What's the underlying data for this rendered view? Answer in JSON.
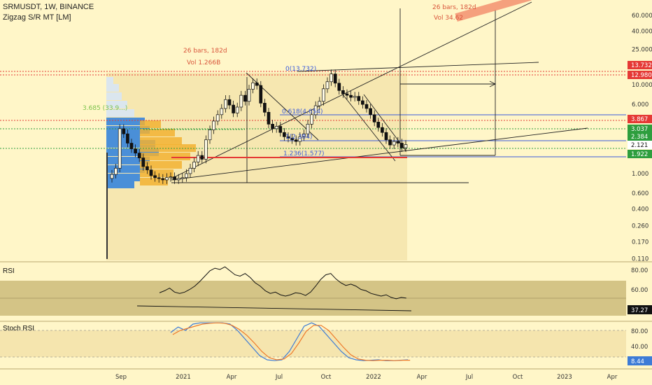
{
  "header": {
    "title": "SRMUSDT, 1W, BINANCE",
    "indicator": "Zigzag S/R MT [LM]"
  },
  "colors": {
    "background": "#fff6c8",
    "candle": "#111111",
    "red_level": "#e53935",
    "green_level": "#2e9e3e",
    "blue_level": "#3b5bdb",
    "volume_blue": "#4a8fd8",
    "volume_orange": "#f2b233",
    "rsi_band": "#cdbb7a",
    "stoch_k": "#3d7bd6",
    "stoch_d": "#ee7a2a"
  },
  "price_axis": {
    "scale": "log",
    "ticks": [
      "60.000",
      "40.000",
      "25.000",
      "10.000",
      "6.000",
      "1.000",
      "0.600",
      "0.400",
      "0.260",
      "0.170",
      "0.110"
    ],
    "tick_values": [
      60,
      40,
      25,
      10,
      6,
      1,
      0.6,
      0.4,
      0.26,
      0.17,
      0.11
    ],
    "badges": [
      {
        "text": "13.732",
        "color": "#e53935"
      },
      {
        "text": "12.980",
        "color": "#e53935"
      },
      {
        "text": "3.867",
        "color": "#e53935"
      },
      {
        "text": "3.037",
        "color": "#2e9e3e"
      },
      {
        "text": "2.384",
        "color": "#2e9e3e"
      },
      {
        "text": "2.121",
        "color": "#ffffff"
      },
      {
        "text": "1.922",
        "color": "#2e9e3e"
      }
    ]
  },
  "time_axis": [
    "Sep",
    "2021",
    "Apr",
    "Jul",
    "Oct",
    "2022",
    "Apr",
    "Jul",
    "Oct",
    "2023",
    "Apr"
  ],
  "annotations": {
    "bars_left": "26 bars, 182d",
    "vol_left": "Vol 1.266B",
    "bars_right": "26 bars, 182d",
    "vol_right": "Vol 34.62",
    "fib_0": "0(13.732)",
    "fib_618": "0.618(4.654)",
    "fib_1": "1(2.384)",
    "fib_1236": "1.236(1.577)",
    "fib_3685": "3.685 (33.9...)"
  },
  "rsi": {
    "title": "RSI",
    "ticks": [
      "80.00",
      "60.00"
    ],
    "current": "37.27"
  },
  "stoch": {
    "title": "Stoch RSI",
    "ticks": [
      "80.00",
      "40.00"
    ],
    "current": "8.44"
  },
  "chart_data": {
    "type": "candlestick",
    "symbol": "SRMUSDT",
    "interval": "1W",
    "exchange": "BINANCE",
    "yscale": "log",
    "close": [
      0.98,
      1.15,
      3.2,
      2.8,
      2.2,
      1.9,
      1.7,
      1.5,
      1.2,
      1.1,
      0.95,
      0.9,
      0.88,
      0.85,
      0.9,
      0.92,
      0.85,
      0.88,
      0.9,
      1.0,
      1.15,
      1.35,
      1.6,
      1.45,
      2.4,
      3.1,
      3.9,
      4.6,
      5.4,
      6.8,
      5.9,
      4.8,
      5.6,
      7.6,
      6.5,
      8.9,
      10.5,
      9.8,
      6.2,
      4.9,
      3.6,
      3.2,
      3.4,
      2.9,
      2.6,
      2.5,
      2.4,
      2.3,
      2.6,
      2.8,
      3.6,
      4.6,
      5.8,
      6.5,
      9.0,
      10.8,
      13.2,
      10.4,
      8.6,
      7.9,
      7.6,
      7.2,
      7.4,
      6.6,
      6.0,
      5.4,
      4.6,
      3.8,
      3.3,
      2.9,
      2.4,
      2.1,
      2.3,
      2.2,
      1.95,
      2.121
    ],
    "levels": [
      13.732,
      12.98,
      3.867,
      3.037,
      2.384,
      2.121,
      1.922
    ],
    "rsi_current": 37.27,
    "stoch_current": 8.44
  }
}
